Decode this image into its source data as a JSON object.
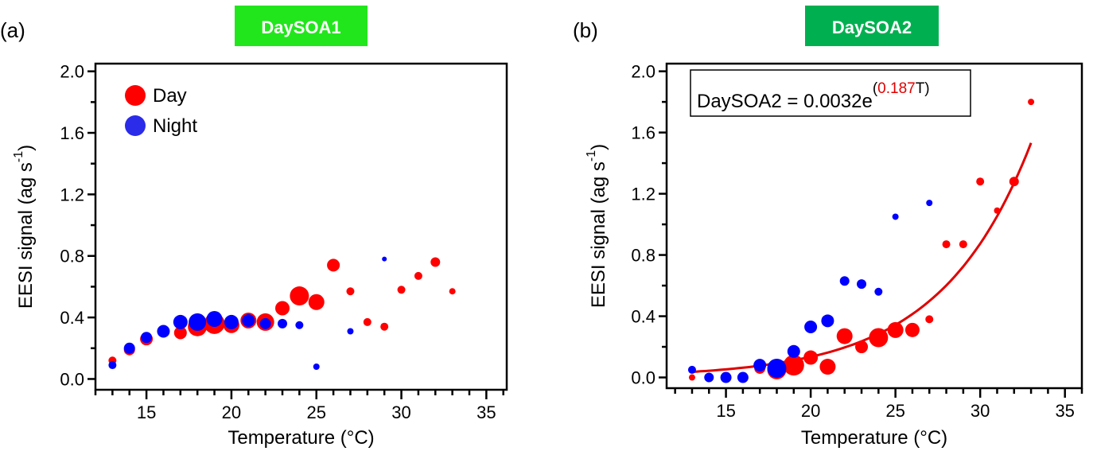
{
  "colors": {
    "day": "#ff0000",
    "night": "#0000ff",
    "legend_night": "#2b2bea",
    "title1_bg": "#22e61c",
    "title2_bg": "#00b050",
    "fit": "#e00000"
  },
  "chart_data": [
    {
      "type": "scatter",
      "panel_label": "(a)",
      "title": "DaySOA1",
      "xlabel": "Temperature (°C)",
      "ylabel": "EESI signal (ag s",
      "ylabel_sup": "-1",
      "ylabel_end": ")",
      "xlim": [
        12,
        36.2
      ],
      "ylim": [
        -0.07,
        2.05
      ],
      "xticks": [
        15,
        20,
        25,
        30,
        35
      ],
      "yticks": [
        "0.0",
        "0.4",
        "0.8",
        "1.2",
        "1.6",
        "2.0"
      ],
      "legend": {
        "position": "top-left",
        "entries": [
          "Day",
          "Night"
        ]
      },
      "series": [
        {
          "name": "Day",
          "points": [
            [
              13,
              0.12,
              5
            ],
            [
              14,
              0.19,
              7
            ],
            [
              15,
              0.26,
              8
            ],
            [
              17,
              0.3,
              8
            ],
            [
              18,
              0.34,
              12
            ],
            [
              19,
              0.36,
              13
            ],
            [
              20,
              0.35,
              10
            ],
            [
              21,
              0.38,
              10
            ],
            [
              22,
              0.37,
              11
            ],
            [
              23,
              0.46,
              9
            ],
            [
              24,
              0.54,
              12
            ],
            [
              25,
              0.5,
              10
            ],
            [
              26,
              0.74,
              8
            ],
            [
              27,
              0.57,
              5
            ],
            [
              28,
              0.37,
              5
            ],
            [
              29,
              0.34,
              5
            ],
            [
              30,
              0.58,
              5
            ],
            [
              31,
              0.67,
              5
            ],
            [
              32,
              0.76,
              6
            ],
            [
              33,
              0.57,
              4
            ]
          ]
        },
        {
          "name": "Night",
          "points": [
            [
              13,
              0.09,
              5
            ],
            [
              14,
              0.2,
              7
            ],
            [
              15,
              0.27,
              7
            ],
            [
              16,
              0.31,
              8
            ],
            [
              17,
              0.37,
              9
            ],
            [
              18,
              0.37,
              11
            ],
            [
              19,
              0.39,
              10
            ],
            [
              20,
              0.37,
              9
            ],
            [
              21,
              0.38,
              8
            ],
            [
              22,
              0.36,
              7
            ],
            [
              23,
              0.36,
              6
            ],
            [
              24,
              0.35,
              5
            ],
            [
              25,
              0.08,
              4
            ],
            [
              27,
              0.31,
              4
            ],
            [
              29,
              0.78,
              3
            ]
          ]
        }
      ]
    },
    {
      "type": "scatter",
      "panel_label": "(b)",
      "title": "DaySOA2",
      "xlabel": "Temperature (°C)",
      "ylabel": "EESI signal (ag s",
      "ylabel_sup": "-1",
      "ylabel_end": ")",
      "xlim": [
        11.5,
        36
      ],
      "ylim": [
        -0.07,
        2.05
      ],
      "xticks": [
        15,
        20,
        25,
        30,
        35
      ],
      "yticks": [
        "0.0",
        "0.4",
        "0.8",
        "1.2",
        "1.6",
        "2.0"
      ],
      "fit": {
        "a": 0.0032,
        "b": 0.187,
        "x_range": [
          13,
          33
        ],
        "equation_prefix": "DaySOA2 = 0.0032e",
        "equation_open": "(",
        "equation_coef": "0.187",
        "equation_var": "T)"
      },
      "series": [
        {
          "name": "Day",
          "points": [
            [
              13,
              0.0,
              4
            ],
            [
              15,
              0.0,
              6
            ],
            [
              17,
              0.06,
              7
            ],
            [
              18,
              0.05,
              12
            ],
            [
              19,
              0.08,
              13
            ],
            [
              20,
              0.13,
              9
            ],
            [
              21,
              0.07,
              10
            ],
            [
              22,
              0.27,
              10
            ],
            [
              23,
              0.2,
              8
            ],
            [
              24,
              0.26,
              12
            ],
            [
              25,
              0.31,
              10
            ],
            [
              26,
              0.31,
              9
            ],
            [
              27,
              0.38,
              5
            ],
            [
              28,
              0.87,
              5
            ],
            [
              29,
              0.87,
              5
            ],
            [
              30,
              1.28,
              5
            ],
            [
              31,
              1.09,
              4
            ],
            [
              32,
              1.28,
              6
            ],
            [
              33,
              1.8,
              4
            ]
          ]
        },
        {
          "name": "Night",
          "points": [
            [
              13,
              0.05,
              5
            ],
            [
              14,
              0.0,
              6
            ],
            [
              15,
              0.0,
              7
            ],
            [
              16,
              0.0,
              7
            ],
            [
              17,
              0.08,
              8
            ],
            [
              18,
              0.06,
              12
            ],
            [
              19,
              0.17,
              8
            ],
            [
              20,
              0.33,
              8
            ],
            [
              21,
              0.37,
              8
            ],
            [
              22,
              0.63,
              6
            ],
            [
              23,
              0.61,
              6
            ],
            [
              24,
              0.56,
              5
            ],
            [
              25,
              1.05,
              4
            ],
            [
              27,
              1.14,
              4
            ]
          ]
        }
      ]
    }
  ]
}
